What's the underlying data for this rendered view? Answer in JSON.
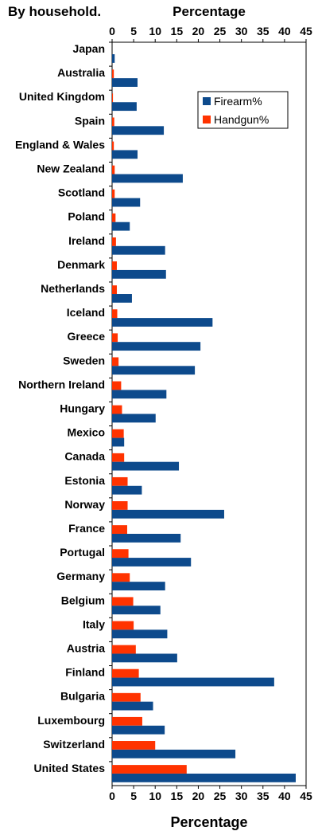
{
  "chart_data": {
    "type": "bar",
    "orientation": "horizontal",
    "header_left": "By household.",
    "xlabel": "Percentage",
    "xlim": [
      0,
      45
    ],
    "xticks": [
      0,
      5,
      10,
      15,
      20,
      25,
      30,
      35,
      40,
      45
    ],
    "grid": false,
    "legend_position": "top-right",
    "categories": [
      "Japan",
      "Australia",
      "United Kingdom",
      "Spain",
      "England & Wales",
      "New Zealand",
      "Scotland",
      "Poland",
      "Ireland",
      "Denmark",
      "Netherlands",
      "Iceland",
      "Greece",
      "Sweden",
      "Northern Ireland",
      "Hungary",
      "Mexico",
      "Canada",
      "Estonia",
      "Norway",
      "France",
      "Portugal",
      "Germany",
      "Belgium",
      "Italy",
      "Austria",
      "Finland",
      "Bulgaria",
      "Luxembourg",
      "Switzerland",
      "United States"
    ],
    "series": [
      {
        "name": "Firearm%",
        "color": "#0d4a8c",
        "values": [
          0.6,
          5.9,
          5.7,
          12.0,
          5.9,
          16.4,
          6.5,
          4.1,
          12.3,
          12.5,
          4.6,
          23.3,
          20.5,
          19.2,
          12.6,
          10.1,
          2.8,
          15.5,
          6.9,
          26.0,
          15.9,
          18.3,
          12.3,
          11.2,
          12.8,
          15.1,
          37.6,
          9.5,
          12.2,
          28.6,
          42.6
        ]
      },
      {
        "name": "Handgun%",
        "color": "#ff3300",
        "values": [
          0.0,
          0.4,
          0.2,
          0.5,
          0.4,
          0.6,
          0.6,
          0.8,
          0.9,
          1.1,
          1.1,
          1.2,
          1.3,
          1.5,
          2.1,
          2.3,
          2.7,
          2.8,
          3.6,
          3.6,
          3.5,
          3.8,
          4.1,
          4.9,
          5.0,
          5.5,
          6.2,
          6.6,
          7.0,
          10.0,
          17.3
        ]
      }
    ]
  }
}
